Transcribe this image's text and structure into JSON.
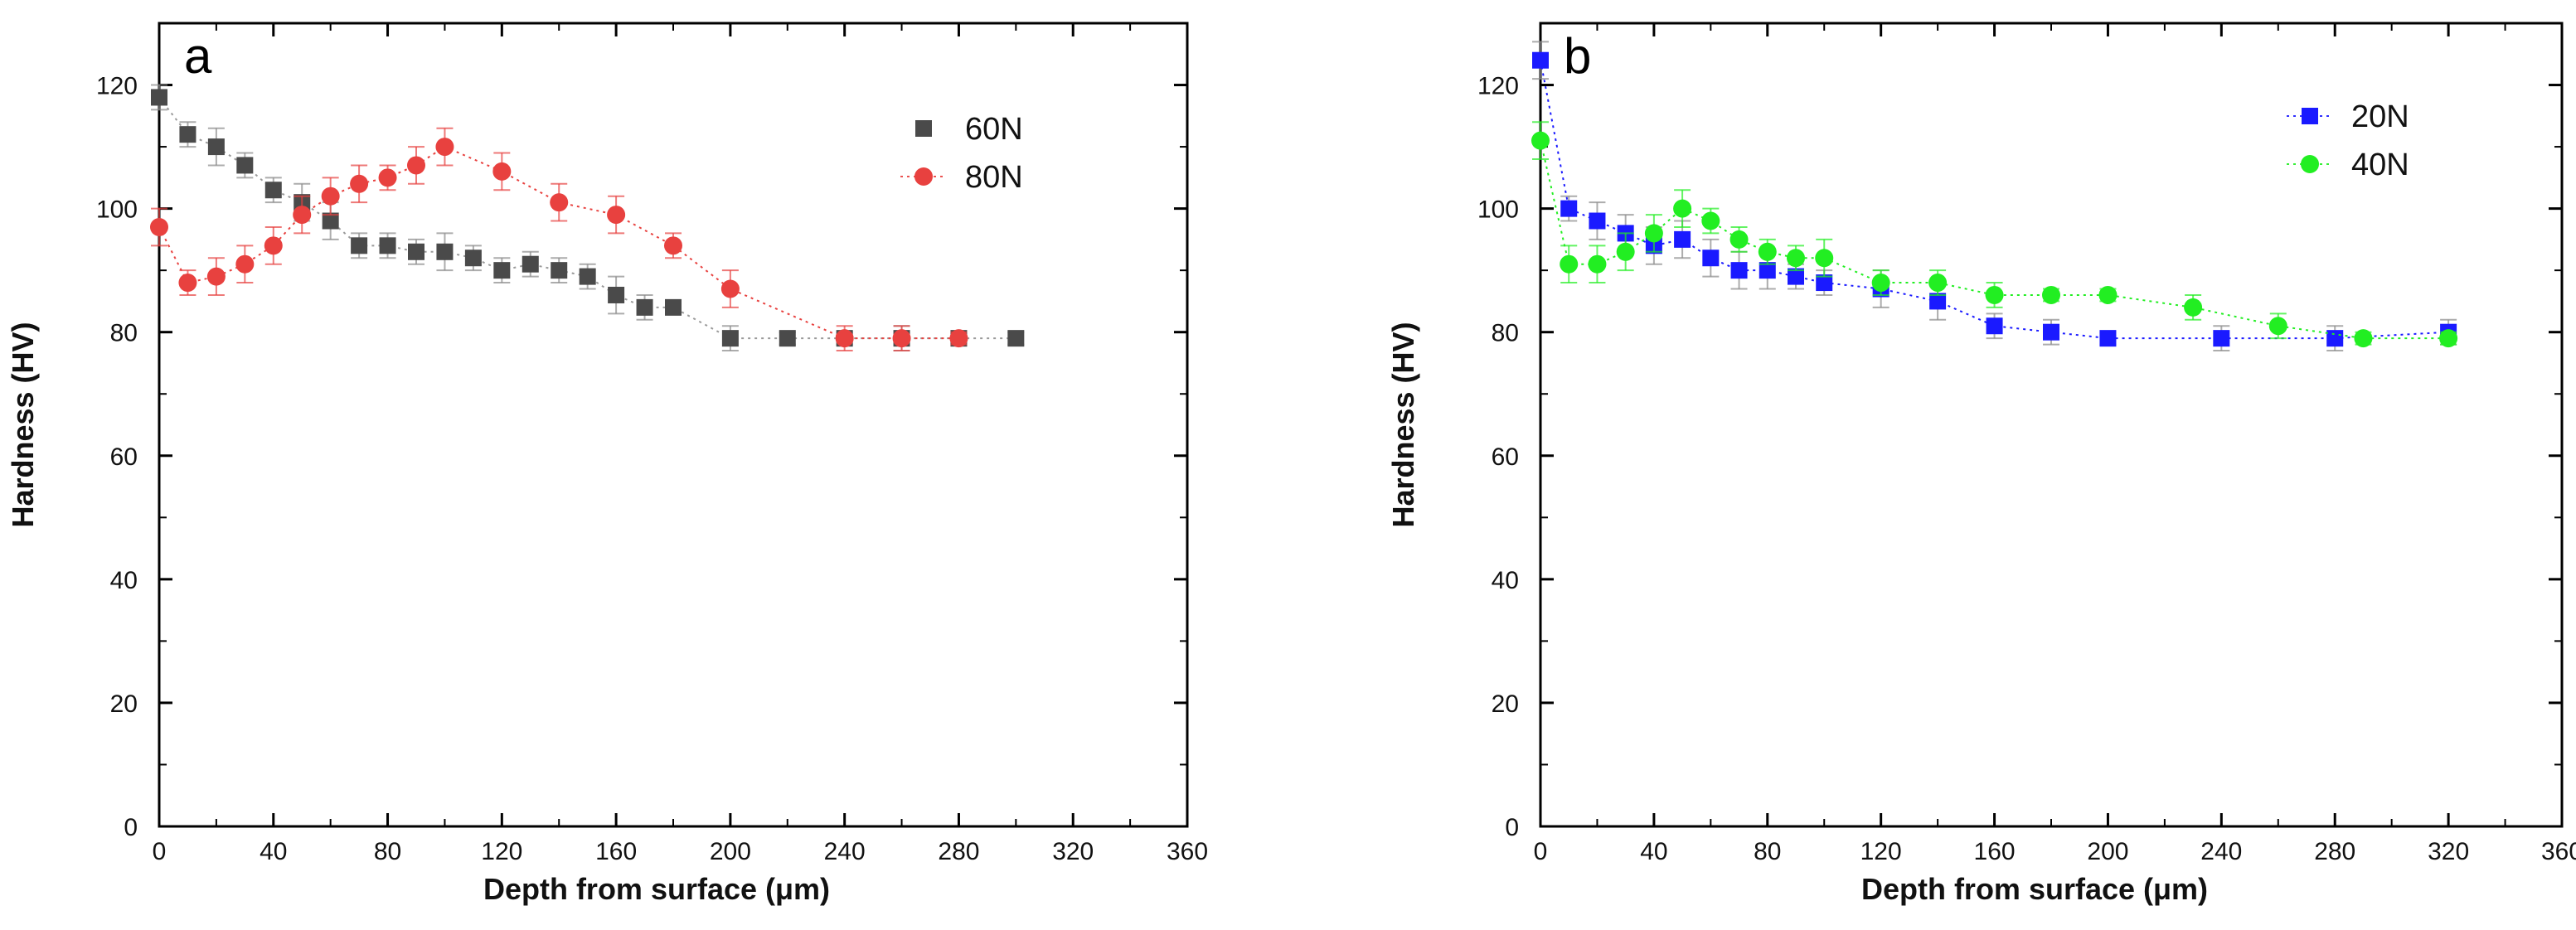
{
  "chart_data": [
    {
      "type": "scatter",
      "panel_label": "a",
      "xlabel": "Depth from surface (μm)",
      "ylabel": "Hardness (HV)",
      "xlim": [
        0,
        360
      ],
      "ylim": [
        0,
        130
      ],
      "xticks": [
        0,
        40,
        80,
        120,
        160,
        200,
        240,
        280,
        320,
        360
      ],
      "yticks": [
        0,
        20,
        40,
        60,
        80,
        100,
        120
      ],
      "legend_position": "top-right",
      "series": [
        {
          "name": "60N",
          "marker": "square",
          "color": "#4a4a4a",
          "line_color": "#9a9a9a",
          "points": [
            {
              "x": 0,
              "y": 118,
              "err": 2
            },
            {
              "x": 10,
              "y": 112,
              "err": 2
            },
            {
              "x": 20,
              "y": 110,
              "err": 3
            },
            {
              "x": 30,
              "y": 107,
              "err": 2
            },
            {
              "x": 40,
              "y": 103,
              "err": 2
            },
            {
              "x": 50,
              "y": 101,
              "err": 3
            },
            {
              "x": 60,
              "y": 98,
              "err": 3
            },
            {
              "x": 70,
              "y": 94,
              "err": 2
            },
            {
              "x": 80,
              "y": 94,
              "err": 2
            },
            {
              "x": 90,
              "y": 93,
              "err": 2
            },
            {
              "x": 100,
              "y": 93,
              "err": 3
            },
            {
              "x": 110,
              "y": 92,
              "err": 2
            },
            {
              "x": 120,
              "y": 90,
              "err": 2
            },
            {
              "x": 130,
              "y": 91,
              "err": 2
            },
            {
              "x": 140,
              "y": 90,
              "err": 2
            },
            {
              "x": 150,
              "y": 89,
              "err": 2
            },
            {
              "x": 160,
              "y": 86,
              "err": 3
            },
            {
              "x": 170,
              "y": 84,
              "err": 2
            },
            {
              "x": 180,
              "y": 84,
              "err": 1
            },
            {
              "x": 200,
              "y": 79,
              "err": 2
            },
            {
              "x": 220,
              "y": 79,
              "err": 1
            },
            {
              "x": 240,
              "y": 79,
              "err": 1
            },
            {
              "x": 260,
              "y": 79,
              "err": 2
            },
            {
              "x": 280,
              "y": 79,
              "err": 1
            },
            {
              "x": 300,
              "y": 79,
              "err": 1
            }
          ]
        },
        {
          "name": "80N",
          "marker": "circle",
          "color": "#e8413f",
          "line_color": "#e8413f",
          "points": [
            {
              "x": 0,
              "y": 97,
              "err": 3
            },
            {
              "x": 10,
              "y": 88,
              "err": 2
            },
            {
              "x": 20,
              "y": 89,
              "err": 3
            },
            {
              "x": 30,
              "y": 91,
              "err": 3
            },
            {
              "x": 40,
              "y": 94,
              "err": 3
            },
            {
              "x": 50,
              "y": 99,
              "err": 3
            },
            {
              "x": 60,
              "y": 102,
              "err": 3
            },
            {
              "x": 70,
              "y": 104,
              "err": 3
            },
            {
              "x": 80,
              "y": 105,
              "err": 2
            },
            {
              "x": 90,
              "y": 107,
              "err": 3
            },
            {
              "x": 100,
              "y": 110,
              "err": 3
            },
            {
              "x": 120,
              "y": 106,
              "err": 3
            },
            {
              "x": 140,
              "y": 101,
              "err": 3
            },
            {
              "x": 160,
              "y": 99,
              "err": 3
            },
            {
              "x": 180,
              "y": 94,
              "err": 2
            },
            {
              "x": 200,
              "y": 87,
              "err": 3
            },
            {
              "x": 240,
              "y": 79,
              "err": 2
            },
            {
              "x": 260,
              "y": 79,
              "err": 2
            },
            {
              "x": 280,
              "y": 79,
              "err": 1
            }
          ]
        }
      ]
    },
    {
      "type": "scatter",
      "panel_label": "b",
      "xlabel": "Depth from surface (μm)",
      "ylabel": "Hardness (HV)",
      "xlim": [
        0,
        360
      ],
      "ylim": [
        0,
        130
      ],
      "xticks": [
        0,
        40,
        80,
        120,
        160,
        200,
        240,
        280,
        320,
        360
      ],
      "yticks": [
        0,
        20,
        40,
        60,
        80,
        100,
        120
      ],
      "legend_position": "top-right",
      "series": [
        {
          "name": "20N",
          "marker": "square",
          "color": "#1a1aff",
          "line_color": "#1a1aff",
          "points": [
            {
              "x": 0,
              "y": 124,
              "err": 3
            },
            {
              "x": 10,
              "y": 100,
              "err": 2
            },
            {
              "x": 20,
              "y": 98,
              "err": 3
            },
            {
              "x": 30,
              "y": 96,
              "err": 3
            },
            {
              "x": 40,
              "y": 94,
              "err": 3
            },
            {
              "x": 50,
              "y": 95,
              "err": 3
            },
            {
              "x": 60,
              "y": 92,
              "err": 3
            },
            {
              "x": 70,
              "y": 90,
              "err": 3
            },
            {
              "x": 80,
              "y": 90,
              "err": 3
            },
            {
              "x": 90,
              "y": 89,
              "err": 2
            },
            {
              "x": 100,
              "y": 88,
              "err": 2
            },
            {
              "x": 120,
              "y": 87,
              "err": 3
            },
            {
              "x": 140,
              "y": 85,
              "err": 3
            },
            {
              "x": 160,
              "y": 81,
              "err": 2
            },
            {
              "x": 180,
              "y": 80,
              "err": 2
            },
            {
              "x": 200,
              "y": 79,
              "err": 1
            },
            {
              "x": 240,
              "y": 79,
              "err": 2
            },
            {
              "x": 280,
              "y": 79,
              "err": 2
            },
            {
              "x": 320,
              "y": 80,
              "err": 2
            }
          ]
        },
        {
          "name": "40N",
          "marker": "circle",
          "color": "#22ee22",
          "line_color": "#22ee22",
          "points": [
            {
              "x": 0,
              "y": 111,
              "err": 3
            },
            {
              "x": 10,
              "y": 91,
              "err": 3
            },
            {
              "x": 20,
              "y": 91,
              "err": 3
            },
            {
              "x": 30,
              "y": 93,
              "err": 3
            },
            {
              "x": 40,
              "y": 96,
              "err": 3
            },
            {
              "x": 50,
              "y": 100,
              "err": 3
            },
            {
              "x": 60,
              "y": 98,
              "err": 2
            },
            {
              "x": 70,
              "y": 95,
              "err": 2
            },
            {
              "x": 80,
              "y": 93,
              "err": 2
            },
            {
              "x": 90,
              "y": 92,
              "err": 2
            },
            {
              "x": 100,
              "y": 92,
              "err": 3
            },
            {
              "x": 120,
              "y": 88,
              "err": 2
            },
            {
              "x": 140,
              "y": 88,
              "err": 2
            },
            {
              "x": 160,
              "y": 86,
              "err": 2
            },
            {
              "x": 180,
              "y": 86,
              "err": 1
            },
            {
              "x": 200,
              "y": 86,
              "err": 1
            },
            {
              "x": 230,
              "y": 84,
              "err": 2
            },
            {
              "x": 260,
              "y": 81,
              "err": 2
            },
            {
              "x": 290,
              "y": 79,
              "err": 1
            },
            {
              "x": 320,
              "y": 79,
              "err": 1
            }
          ]
        }
      ]
    }
  ]
}
